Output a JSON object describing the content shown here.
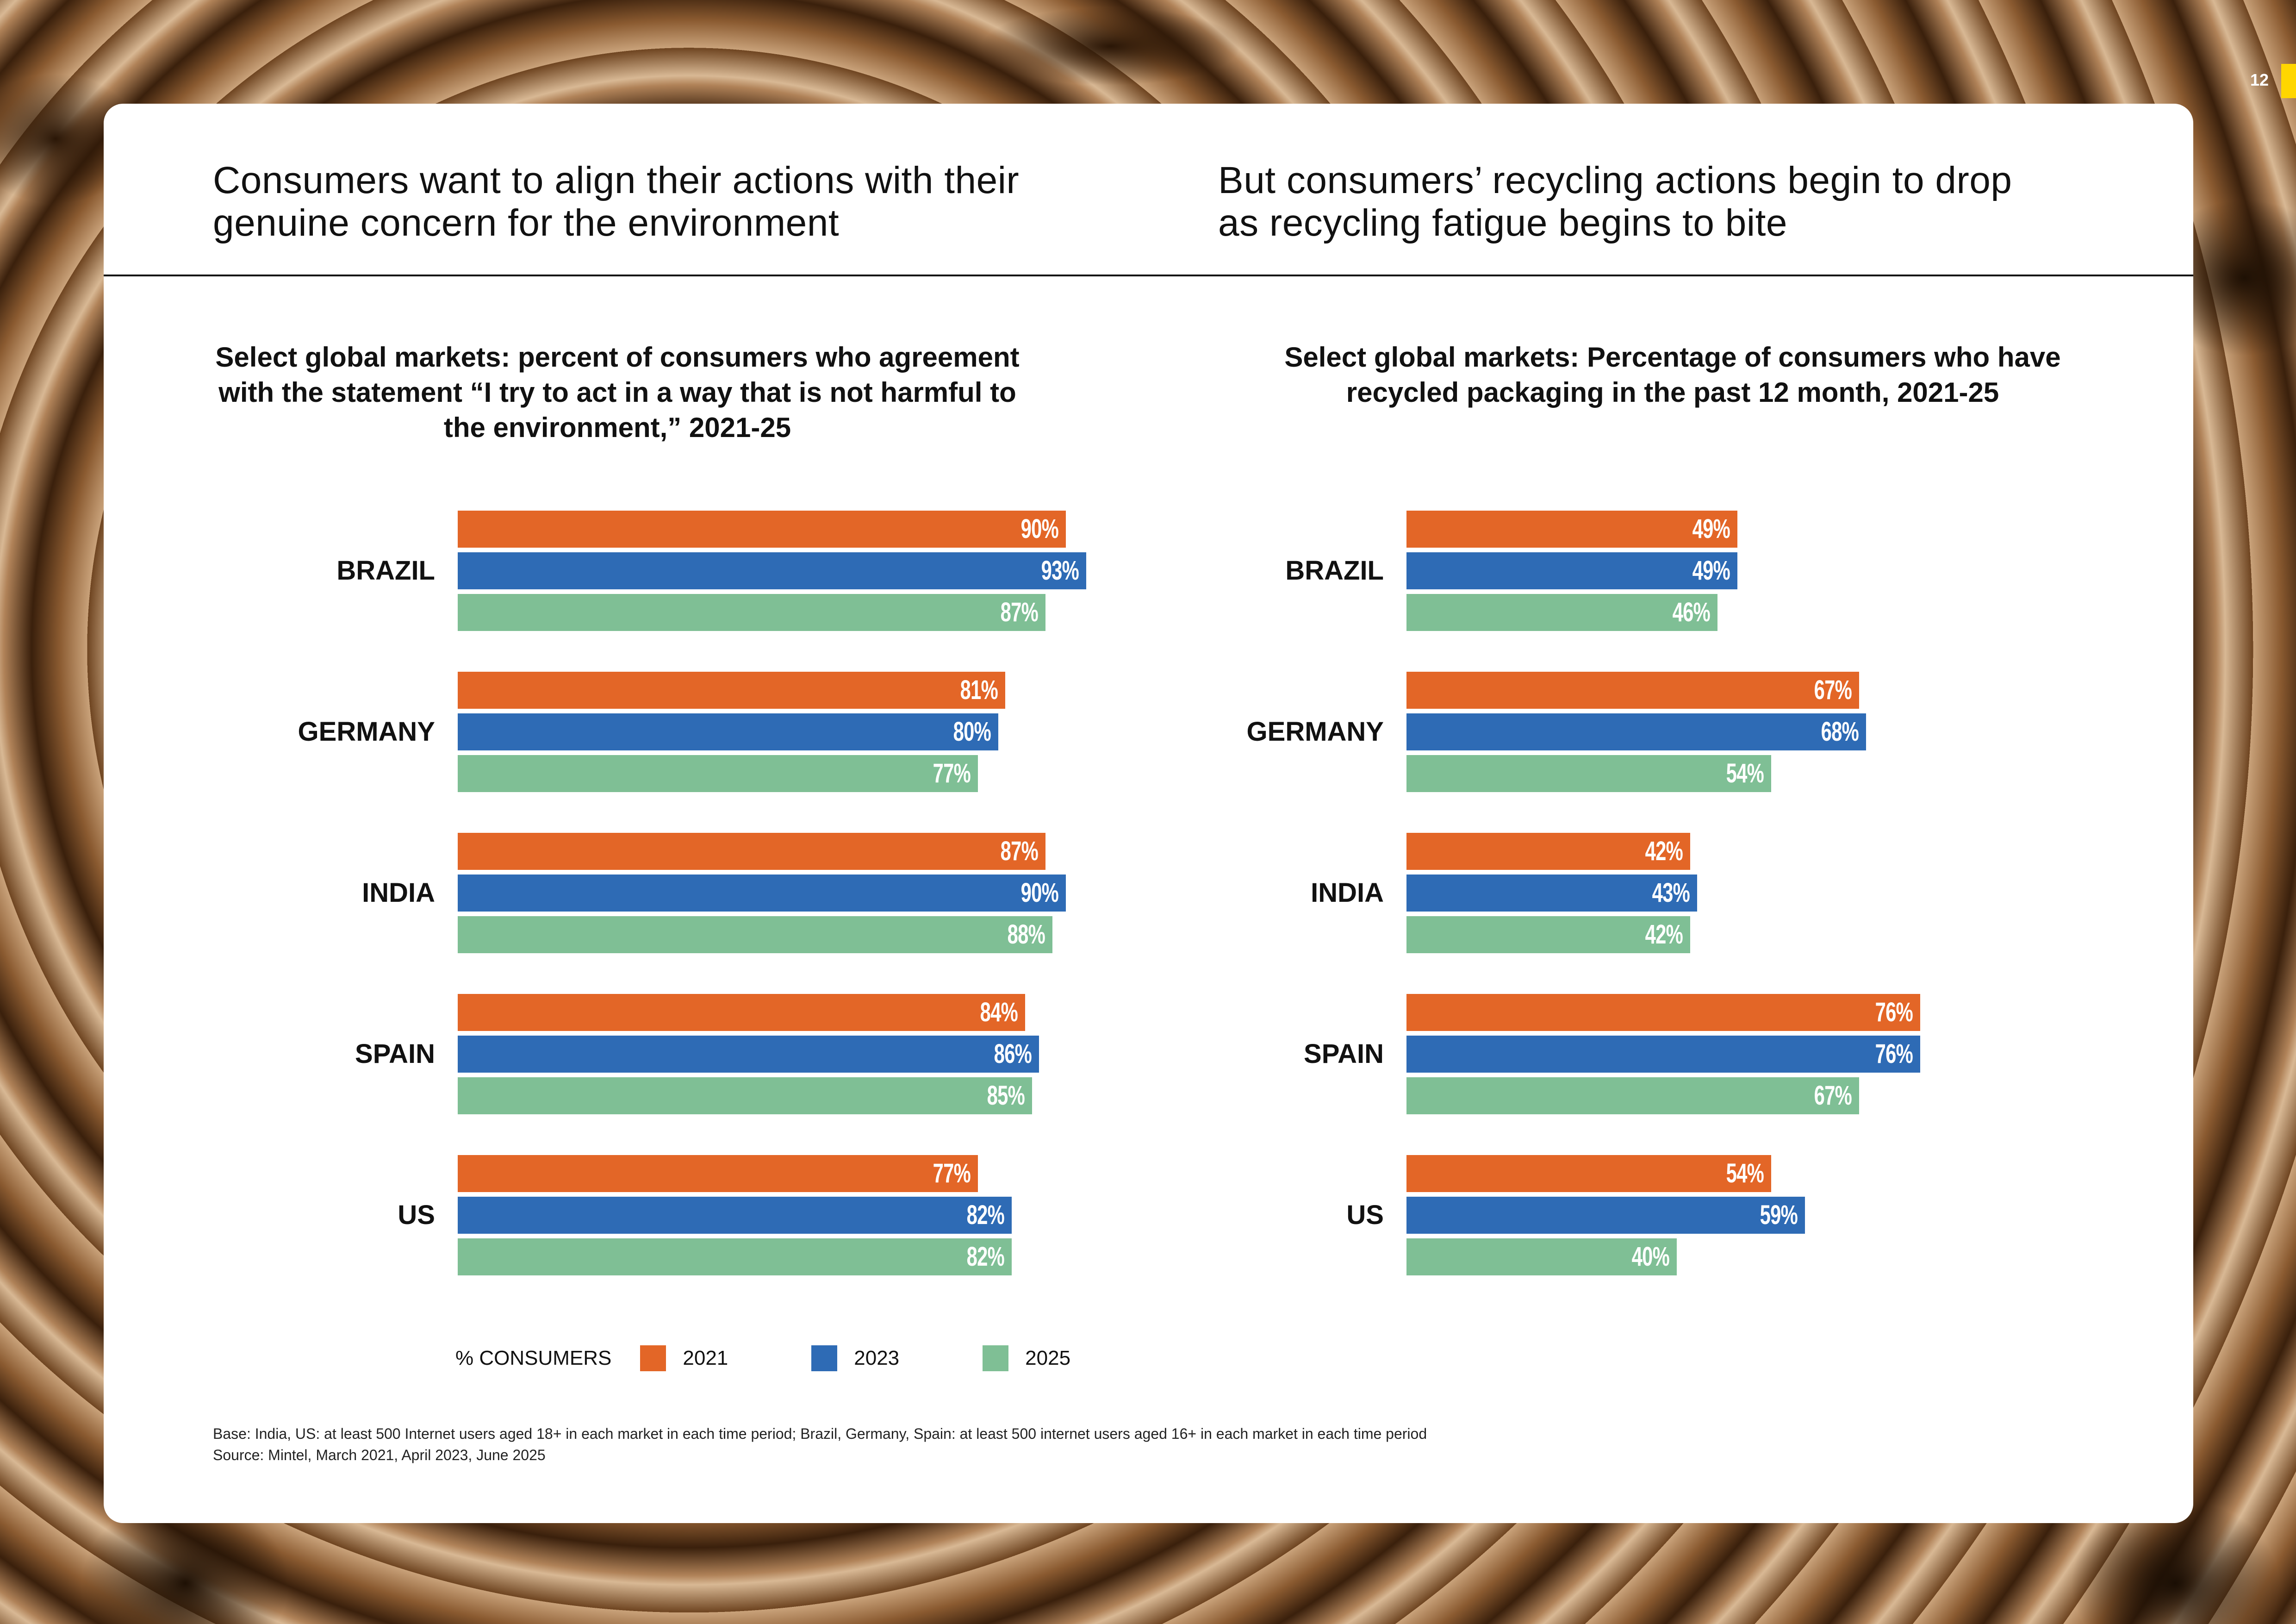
{
  "page": {
    "number": "12",
    "accent_color": "#ffd600"
  },
  "left_panel": {
    "headline": [
      "Consumers want to align their actions with their",
      "genuine concern for the environment"
    ],
    "subtitle": [
      "Select global markets: percent of consumers who agreement",
      "with the statement “I try to act in a way that is not harmful to",
      "the environment,” 2021-25"
    ]
  },
  "right_panel": {
    "headline": [
      "But consumers’ recycling actions begin to drop",
      "as recycling fatigue begins to bite"
    ],
    "subtitle": [
      "Select global markets: Percentage of consumers who have",
      "recycled packaging in the past 12 month, 2021-25"
    ]
  },
  "legend": {
    "title": "% CONSUMERS",
    "items": [
      {
        "label": "2021",
        "color": "#e36627"
      },
      {
        "label": "2023",
        "color": "#2e6bb5"
      },
      {
        "label": "2025",
        "color": "#7fbf95"
      }
    ]
  },
  "footer": {
    "base": "Base: India, US: at least 500 Internet users aged 18+ in each market in each time period; Brazil, Germany, Spain: at least 500 internet users aged 16+ in each market in each time period",
    "source": "Source: Mintel, March 2021, April 2023, June 2025"
  },
  "chart_data": [
    {
      "type": "bar",
      "orientation": "horizontal",
      "title": "Select global markets: percent of consumers who agreement with the statement “I try to act in a way that is not harmful to the environment,” 2021-25",
      "xlabel": "% CONSUMERS",
      "ylabel": "",
      "xlim": [
        0,
        100
      ],
      "grid": false,
      "legend_position": "bottom",
      "categories": [
        "BRAZIL",
        "GERMANY",
        "INDIA",
        "SPAIN",
        "US"
      ],
      "series": [
        {
          "name": "2021",
          "color": "#e36627",
          "values": [
            90,
            81,
            87,
            84,
            77
          ]
        },
        {
          "name": "2023",
          "color": "#2e6bb5",
          "values": [
            93,
            80,
            90,
            86,
            82
          ]
        },
        {
          "name": "2025",
          "color": "#7fbf95",
          "values": [
            87,
            77,
            88,
            85,
            82
          ]
        }
      ],
      "value_suffix": "%"
    },
    {
      "type": "bar",
      "orientation": "horizontal",
      "title": "Select global markets: Percentage of consumers who have recycled packaging in the past 12 month, 2021-25",
      "xlabel": "% CONSUMERS",
      "ylabel": "",
      "xlim": [
        0,
        100
      ],
      "grid": false,
      "legend_position": "bottom",
      "categories": [
        "BRAZIL",
        "GERMANY",
        "INDIA",
        "SPAIN",
        "US"
      ],
      "series": [
        {
          "name": "2021",
          "color": "#e36627",
          "values": [
            49,
            67,
            42,
            76,
            54
          ]
        },
        {
          "name": "2023",
          "color": "#2e6bb5",
          "values": [
            49,
            68,
            43,
            76,
            59
          ]
        },
        {
          "name": "2025",
          "color": "#7fbf95",
          "values": [
            46,
            54,
            42,
            67,
            40
          ]
        }
      ],
      "value_suffix": "%"
    }
  ]
}
